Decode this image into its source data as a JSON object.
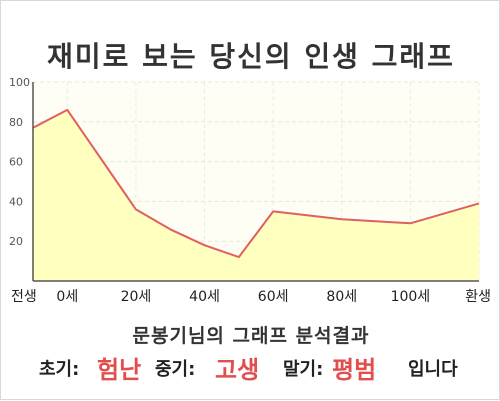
{
  "title": "재미로 보는 당신의 인생 그래프",
  "subtitle": "문봉기님의 그래프 분석결과",
  "result": {
    "early_label": "초기:",
    "early_value": "험난",
    "mid_label": "중기:",
    "mid_value": "고생",
    "late_label": "말기:",
    "late_value": "평범",
    "suffix": "입니다"
  },
  "colors": {
    "line": "#e06060",
    "area": "#ffffc0",
    "accent": "#e24e4e"
  },
  "chart_data": {
    "type": "area",
    "x": [
      -10,
      0,
      20,
      30,
      40,
      50,
      60,
      80,
      100,
      120
    ],
    "values": [
      77,
      86,
      36,
      26,
      18,
      12,
      35,
      31,
      29,
      39
    ],
    "xticks": [
      {
        "x": -10,
        "label": "전생"
      },
      {
        "x": 0,
        "label": "0세"
      },
      {
        "x": 20,
        "label": "20세"
      },
      {
        "x": 40,
        "label": "40세"
      },
      {
        "x": 60,
        "label": "60세"
      },
      {
        "x": 80,
        "label": "80세"
      },
      {
        "x": 100,
        "label": "100세"
      },
      {
        "x": 120,
        "label": "환생"
      }
    ],
    "yticks": [
      20,
      40,
      60,
      80,
      100
    ],
    "ylim": [
      0,
      100
    ],
    "xlim": [
      -10,
      120
    ],
    "grid": true,
    "legend": "none"
  }
}
